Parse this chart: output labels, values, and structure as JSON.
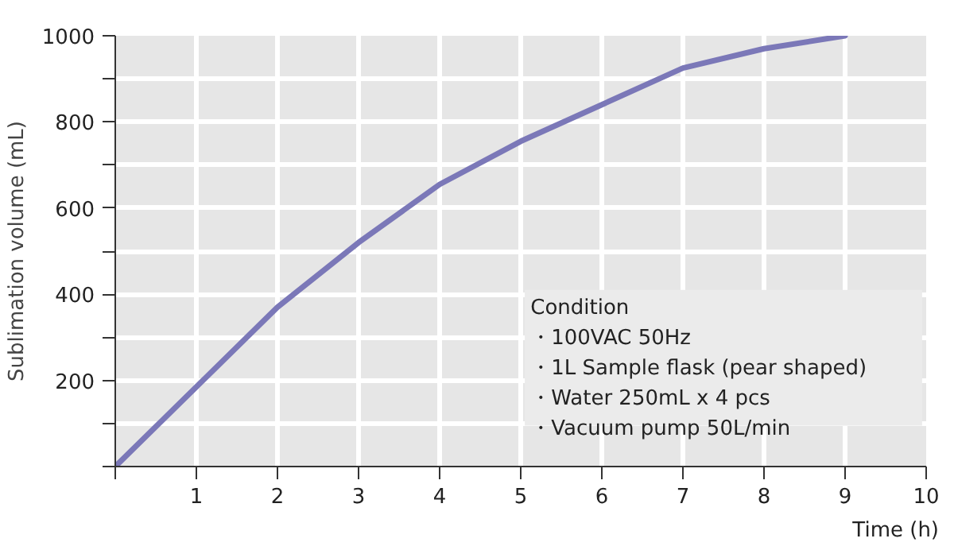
{
  "chart_data": {
    "type": "line",
    "xlabel": "Time (h)",
    "ylabel": "Sublimation volume (mL)",
    "x": [
      0,
      1,
      2,
      3,
      4,
      5,
      6,
      7,
      8,
      9
    ],
    "series": [
      {
        "color": "#7b78b8",
        "values": [
          0,
          185,
          370,
          520,
          655,
          755,
          840,
          925,
          970,
          1000
        ]
      }
    ],
    "xlim": [
      0,
      10
    ],
    "ylim": [
      0,
      1000
    ],
    "xticks": [
      {
        "value": 0,
        "label": null
      },
      1,
      2,
      3,
      4,
      5,
      6,
      7,
      8,
      9,
      10
    ],
    "yticks": [
      {
        "value": 0,
        "label": null
      },
      {
        "value": 100,
        "label": null
      },
      200,
      {
        "value": 300,
        "label": null
      },
      400,
      {
        "value": 500,
        "label": null
      },
      600,
      {
        "value": 700,
        "label": null
      },
      800,
      {
        "value": 900,
        "label": null
      },
      1000
    ],
    "grid": true,
    "marker": "none",
    "line_style": "solid",
    "annotations": [
      "Condition",
      "・100VAC 50Hz",
      "・1L Sample flask (pear shaped)",
      "・Water 250mL x 4 pcs",
      "・Vacuum pump 50L/min"
    ]
  }
}
